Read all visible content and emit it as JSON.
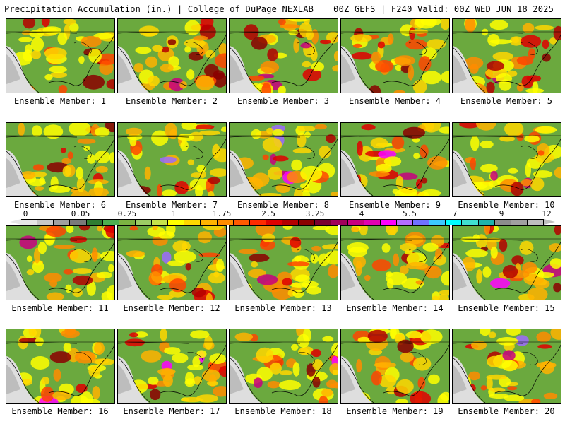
{
  "header": {
    "left": "Precipitation Accumulation (in.) | College of DuPage NEXLAB",
    "right": "00Z GEFS | F240 Valid: 00Z WED JUN 18 2025"
  },
  "members": [
    "Ensemble Member: 1",
    "Ensemble Member: 2",
    "Ensemble Member: 3",
    "Ensemble Member: 4",
    "Ensemble Member: 5",
    "Ensemble Member: 6",
    "Ensemble Member: 7",
    "Ensemble Member: 8",
    "Ensemble Member: 9",
    "Ensemble Member: 10",
    "Ensemble Member: 11",
    "Ensemble Member: 12",
    "Ensemble Member: 13",
    "Ensemble Member: 14",
    "Ensemble Member: 15",
    "Ensemble Member: 16",
    "Ensemble Member: 17",
    "Ensemble Member: 18",
    "Ensemble Member: 19",
    "Ensemble Member: 20"
  ],
  "colorbar": {
    "labels": [
      "0",
      "0.05",
      "0.25",
      "1",
      "1.75",
      "2.5",
      "3.25",
      "4",
      "5.5",
      "7",
      "9",
      "12"
    ],
    "colors": [
      "#e6e6e6",
      "#c8c8c8",
      "#a0a0a0",
      "#7a7a7a",
      "#2e7d32",
      "#4caf50",
      "#7cb342",
      "#9ccc65",
      "#c6e24b",
      "#ffff00",
      "#ffd700",
      "#ffb300",
      "#ff8c00",
      "#ff5a00",
      "#ff2a00",
      "#e00000",
      "#b40000",
      "#8b0000",
      "#7a0030",
      "#a0005a",
      "#c8007f",
      "#e000b0",
      "#ff00ff",
      "#b46cff",
      "#7070ff",
      "#3cc8ff",
      "#00ffff",
      "#40e0d0",
      "#20b2aa",
      "#8c8c8c",
      "#a0a0a0",
      "#bebebe"
    ]
  }
}
